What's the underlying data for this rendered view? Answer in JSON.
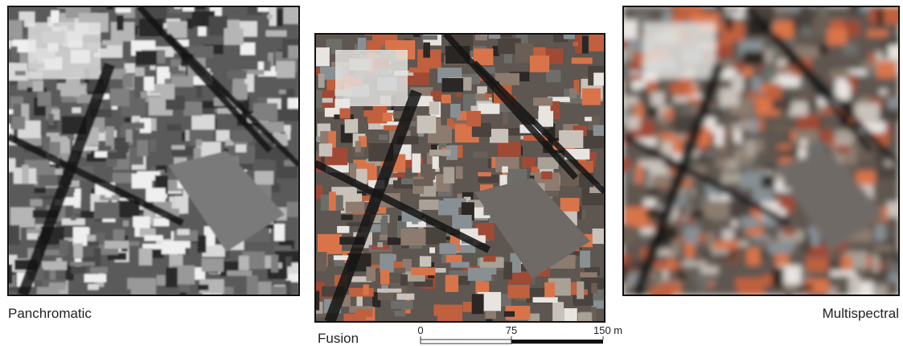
{
  "panels": [
    {
      "label": "Panchromatic"
    },
    {
      "label": "Fusion"
    },
    {
      "label": "Multispectral"
    }
  ],
  "scale_bar": {
    "ticks": [
      "0",
      "75",
      "150 m"
    ]
  }
}
